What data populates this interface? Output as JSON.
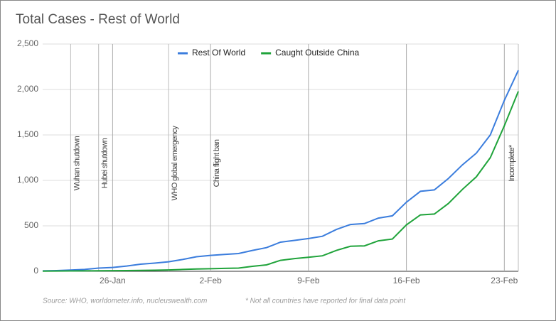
{
  "chart_data": {
    "type": "line",
    "title": "Total Cases - Rest of World",
    "categories": [
      null,
      null,
      null,
      null,
      null,
      "26-Jan",
      null,
      null,
      null,
      null,
      null,
      null,
      "2-Feb",
      null,
      null,
      null,
      null,
      null,
      null,
      "9-Feb",
      null,
      null,
      null,
      null,
      null,
      null,
      "16-Feb",
      null,
      null,
      null,
      null,
      null,
      null,
      "23-Feb",
      null
    ],
    "series": [
      {
        "name": "Rest Of World",
        "color": "#3b7ddd",
        "values": [
          5,
          8,
          14,
          20,
          35,
          42,
          58,
          78,
          90,
          105,
          130,
          160,
          175,
          185,
          195,
          230,
          260,
          320,
          340,
          360,
          385,
          460,
          515,
          525,
          585,
          610,
          760,
          880,
          895,
          1020,
          1170,
          1300,
          1500,
          1880,
          2210
        ]
      },
      {
        "name": "Caught Outside China",
        "color": "#1fa33a",
        "values": [
          2,
          3,
          4,
          5,
          6,
          7,
          8,
          10,
          12,
          15,
          20,
          25,
          28,
          32,
          35,
          55,
          70,
          120,
          140,
          155,
          170,
          230,
          275,
          280,
          335,
          355,
          510,
          620,
          630,
          745,
          900,
          1040,
          1250,
          1600,
          1980
        ]
      }
    ],
    "ylim": [
      0,
      2500
    ],
    "yticks": [
      0,
      500,
      {
        "value": 1000,
        "label": "1,000"
      },
      {
        "value": 1500,
        "label": "1,500"
      },
      {
        "value": 2000,
        "label": "2,000"
      },
      {
        "value": 2500,
        "label": "2,500"
      }
    ],
    "grid": true,
    "legend": "top",
    "annotations": [
      "Wuhan shutdown",
      "Hubei shutdown",
      "WHO global emergency",
      "China flight ban",
      "Incomplete*"
    ],
    "footnotes": [
      "Source: WHO, worldometer.info, nucleuswealth.com",
      "* Not all countries have reported for final data point"
    ]
  }
}
